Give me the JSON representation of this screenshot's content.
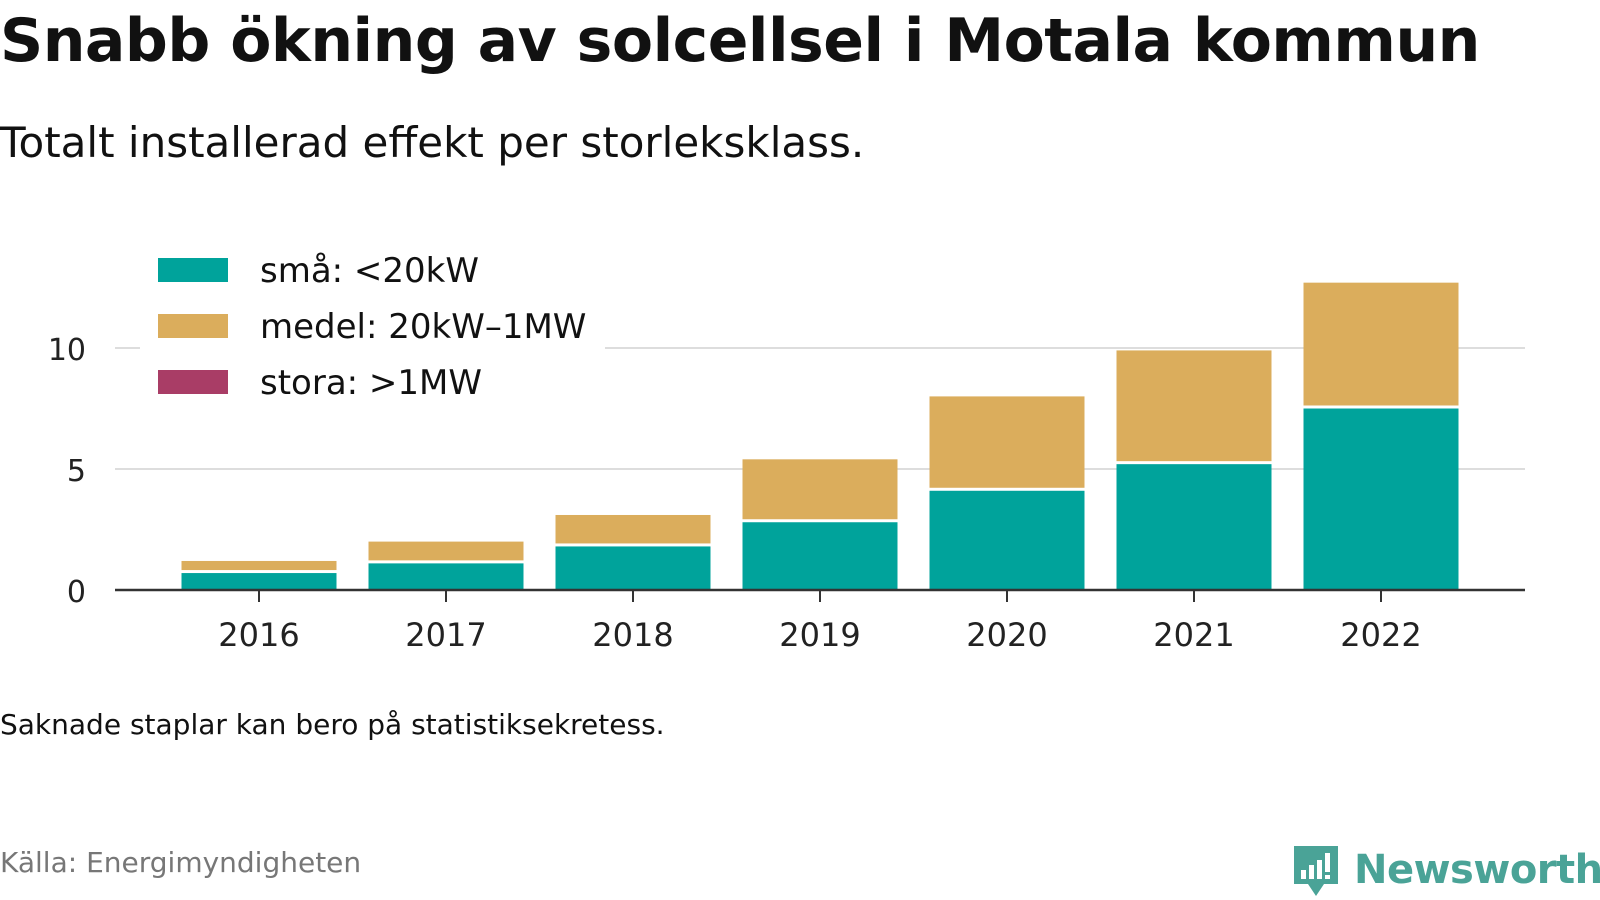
{
  "title": "Snabb ökning av solcellsel i Motala kommun",
  "subtitle": "Totalt installerad effekt per storleksklass.",
  "note": "Saknade staplar kan bero på statistiksekretess.",
  "source": "Källa: Energimyndigheten",
  "brand": {
    "name": "Newsworthy",
    "color": "#4aa397"
  },
  "chart_data": {
    "type": "bar",
    "stacked": true,
    "categories": [
      "2016",
      "2017",
      "2018",
      "2019",
      "2020",
      "2021",
      "2022"
    ],
    "series": [
      {
        "name": "små: <20kW",
        "color": "#00a39b",
        "values": [
          0.7,
          1.1,
          1.8,
          2.8,
          4.1,
          5.2,
          7.5
        ]
      },
      {
        "name": "medel: 20kW–1MW",
        "color": "#dbad5c",
        "values": [
          0.5,
          0.9,
          1.3,
          2.6,
          3.9,
          4.7,
          5.2
        ]
      },
      {
        "name": "stora: >1MW",
        "color": "#a93d66",
        "values": [
          0,
          0,
          0,
          0,
          0,
          0,
          0
        ]
      }
    ],
    "y_ticks": [
      0,
      5,
      10
    ],
    "ylim": [
      0,
      13.2
    ],
    "grid": true,
    "legend_position": "top-left",
    "xlabel": "",
    "ylabel": ""
  }
}
